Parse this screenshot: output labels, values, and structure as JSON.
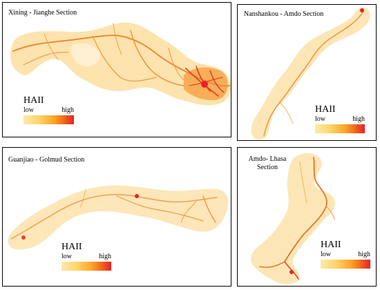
{
  "figure": {
    "panels": [
      {
        "title": "Xining - Jianghe Section",
        "legend": {
          "title": "HAII",
          "low": "low",
          "high": "high"
        }
      },
      {
        "title": "Nanshankou - Amdo Section",
        "legend": {
          "title": "HAII",
          "low": "low",
          "high": "high"
        }
      },
      {
        "title": "Guanjiao - Golmud Section",
        "legend": {
          "title": "HAII",
          "low": "low",
          "high": "high"
        }
      },
      {
        "title": "Amdo- Lhasa Section",
        "legend": {
          "title": "HAII",
          "low": "low",
          "high": "high"
        }
      }
    ],
    "colors": {
      "corridor_base": "#fde5b4",
      "corridor_light": "#feeed0",
      "road_low": "#f6b35a",
      "road_high": "#e3342a",
      "hotspot": "#e8202a"
    }
  }
}
